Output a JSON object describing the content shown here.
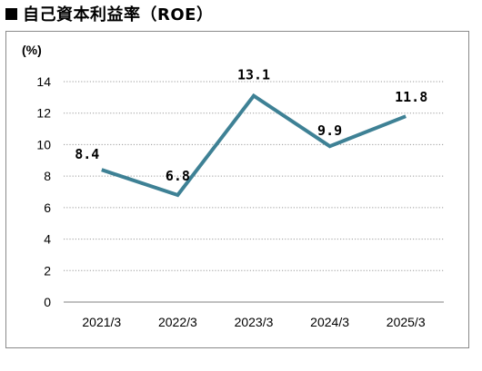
{
  "title": "自己資本利益率（ROE）",
  "chart_data": {
    "type": "line",
    "title": "自己資本利益率（ROE）",
    "ylabel": "(%)",
    "xlabel": "",
    "categories": [
      "2021/3",
      "2022/3",
      "2023/3",
      "2024/3",
      "2025/3"
    ],
    "series": [
      {
        "values": [
          8.4,
          6.8,
          13.1,
          9.9,
          11.8
        ],
        "color": "#3e8195"
      }
    ],
    "data_labels": [
      "8.4",
      "6.8",
      "13.1",
      "9.9",
      "11.8"
    ],
    "yticks": [
      0,
      2,
      4,
      6,
      8,
      10,
      12,
      14
    ],
    "ylim": [
      0,
      14
    ],
    "grid": "horizontal-dotted",
    "legend": "none"
  }
}
